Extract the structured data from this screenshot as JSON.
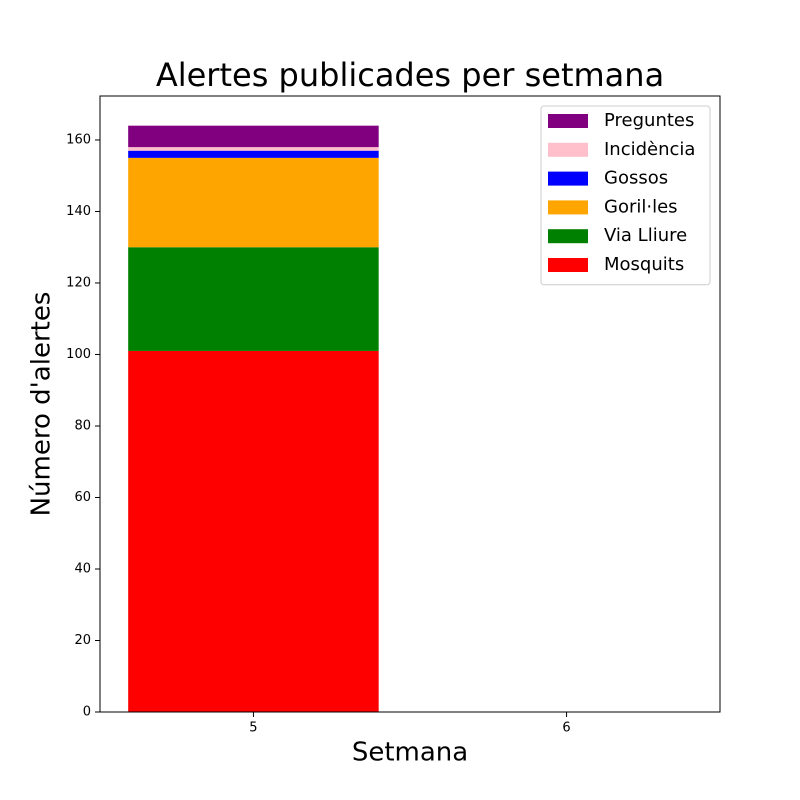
{
  "chart_data": {
    "type": "stacked-bar",
    "title": "Alertes publicades per setmana",
    "x_label": "Setmana",
    "y_label": "Número d'alertes",
    "x": [
      5,
      6
    ],
    "xlim": [
      4.51,
      6.49
    ],
    "xticks": [
      5,
      6
    ],
    "bar_width": 0.8,
    "ylim": [
      0,
      172.3
    ],
    "yticks": [
      0,
      20,
      40,
      60,
      80,
      100,
      120,
      140,
      160
    ],
    "legend": "upper right",
    "series": [
      {
        "name": "Mosquits",
        "color": "#ff0000",
        "values": [
          101,
          0
        ]
      },
      {
        "name": "Via Lliure",
        "color": "#008000",
        "values": [
          29,
          0
        ]
      },
      {
        "name": "Goril·les",
        "color": "#ffa500",
        "values": [
          25,
          0
        ]
      },
      {
        "name": "Gossos",
        "color": "#0000ff",
        "values": [
          2,
          0
        ]
      },
      {
        "name": "Incidència",
        "color": "#ffc0cb",
        "values": [
          1,
          0
        ]
      },
      {
        "name": "Preguntes",
        "color": "#800080",
        "values": [
          6,
          0
        ]
      }
    ]
  }
}
